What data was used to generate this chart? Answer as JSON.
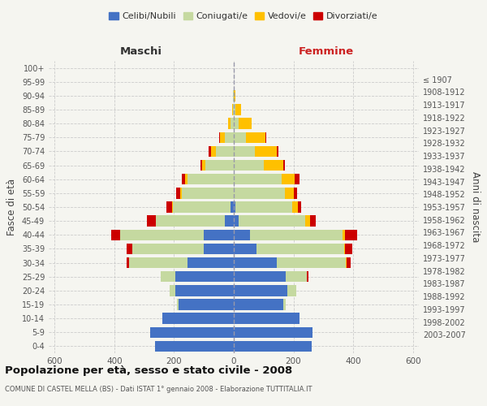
{
  "age_groups": [
    "0-4",
    "5-9",
    "10-14",
    "15-19",
    "20-24",
    "25-29",
    "30-34",
    "35-39",
    "40-44",
    "45-49",
    "50-54",
    "55-59",
    "60-64",
    "65-69",
    "70-74",
    "75-79",
    "80-84",
    "85-89",
    "90-94",
    "95-99",
    "100+"
  ],
  "birth_years": [
    "2003-2007",
    "1998-2002",
    "1993-1997",
    "1988-1992",
    "1983-1987",
    "1978-1982",
    "1973-1977",
    "1968-1972",
    "1963-1967",
    "1958-1962",
    "1953-1957",
    "1948-1952",
    "1943-1947",
    "1938-1942",
    "1933-1937",
    "1928-1932",
    "1923-1927",
    "1918-1922",
    "1913-1917",
    "1908-1912",
    "≤ 1907"
  ],
  "maschi": {
    "celibi": [
      265,
      280,
      240,
      185,
      195,
      195,
      155,
      100,
      100,
      30,
      10,
      0,
      0,
      0,
      0,
      0,
      0,
      0,
      0,
      0,
      0
    ],
    "coniugati": [
      0,
      0,
      0,
      5,
      20,
      50,
      195,
      240,
      280,
      230,
      195,
      175,
      155,
      95,
      60,
      30,
      12,
      3,
      2,
      0,
      0
    ],
    "vedovi": [
      0,
      0,
      0,
      0,
      0,
      0,
      0,
      0,
      0,
      2,
      3,
      5,
      8,
      12,
      15,
      15,
      8,
      2,
      0,
      0,
      0
    ],
    "divorziati": [
      0,
      0,
      0,
      0,
      0,
      0,
      8,
      18,
      30,
      30,
      18,
      12,
      12,
      5,
      8,
      5,
      0,
      0,
      0,
      0,
      0
    ]
  },
  "femmine": {
    "nubili": [
      260,
      265,
      220,
      165,
      180,
      175,
      145,
      75,
      55,
      15,
      5,
      0,
      0,
      0,
      0,
      0,
      0,
      0,
      0,
      0,
      0
    ],
    "coniugate": [
      0,
      0,
      0,
      10,
      30,
      70,
      230,
      295,
      310,
      225,
      190,
      170,
      160,
      100,
      70,
      40,
      15,
      5,
      1,
      0,
      0
    ],
    "vedove": [
      0,
      0,
      0,
      0,
      0,
      0,
      2,
      3,
      8,
      15,
      20,
      30,
      45,
      65,
      75,
      65,
      45,
      20,
      5,
      1,
      0
    ],
    "divorziate": [
      0,
      0,
      0,
      0,
      0,
      5,
      15,
      25,
      40,
      20,
      12,
      12,
      15,
      5,
      5,
      5,
      0,
      0,
      0,
      0,
      0
    ]
  },
  "colors": {
    "celibi": "#4472c4",
    "coniugati": "#c5d9a0",
    "vedovi": "#ffc000",
    "divorziati": "#cc0000"
  },
  "xlim": 620,
  "title": "Popolazione per età, sesso e stato civile - 2008",
  "subtitle": "COMUNE DI CASTEL MELLA (BS) - Dati ISTAT 1° gennaio 2008 - Elaborazione TUTTITALIA.IT",
  "xlabel_left": "Maschi",
  "xlabel_right": "Femmine",
  "ylabel_left": "Fasce di età",
  "ylabel_right": "Anni di nascita",
  "legend_labels": [
    "Celibi/Nubili",
    "Coniugati/e",
    "Vedovi/e",
    "Divorziati/e"
  ],
  "bg_color": "#f5f5f0",
  "plot_bg": "#f5f5f0",
  "grid_color": "#cccccc"
}
